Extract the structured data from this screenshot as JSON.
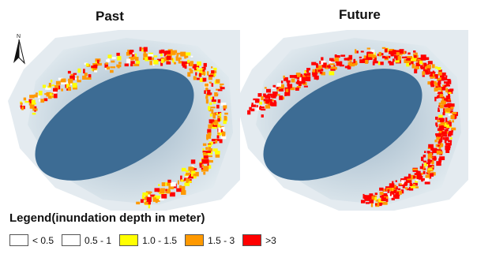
{
  "titles": {
    "past": "Past",
    "future": "Future"
  },
  "legend": {
    "title": "Legend(inundation depth in meter)",
    "items": [
      {
        "label": "< 0.5",
        "color": "#ffffff"
      },
      {
        "label": "0.5 - 1",
        "color": "#ffffff"
      },
      {
        "label": "1.0 - 1.5",
        "color": "#ffff00"
      },
      {
        "label": "1.5 - 3",
        "color": "#ff9900"
      },
      {
        "label": ">3",
        "color": "#ff0000"
      }
    ]
  },
  "colors": {
    "water": "#3d6c94",
    "shore_inner": "#9fb6c8",
    "shore_outer": "#d8e3ea",
    "land": "#eef3f6"
  },
  "icons": {
    "north_arrow": "north-arrow-icon"
  }
}
